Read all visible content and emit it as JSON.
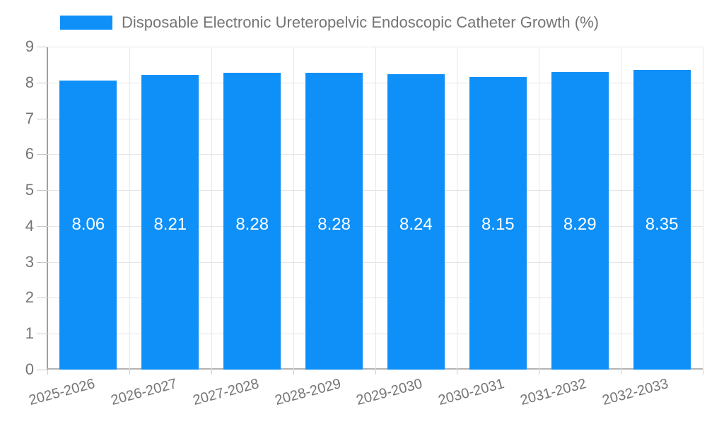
{
  "chart_data": {
    "type": "bar",
    "title": "Disposable Electronic Ureteropelvic Endoscopic Catheter Growth (%)",
    "categories": [
      "2025-2026",
      "2026-2027",
      "2027-2028",
      "2028-2029",
      "2029-2030",
      "2030-2031",
      "2031-2032",
      "2032-2033"
    ],
    "values": [
      8.06,
      8.21,
      8.28,
      8.28,
      8.24,
      8.15,
      8.29,
      8.35
    ],
    "bar_labels": [
      "8.06",
      "8.21",
      "8.28",
      "8.28",
      "8.24",
      "8.15",
      "8.29",
      "8.35"
    ],
    "xlabel": "",
    "ylabel": "",
    "ylim": [
      0,
      9
    ],
    "yticks": [
      0,
      1,
      2,
      3,
      4,
      5,
      6,
      7,
      8,
      9
    ],
    "grid": true,
    "legend_position": "top-left",
    "colors": {
      "bar": "#0e90f8",
      "value_label": "#ffffff",
      "axis_text": "#757575",
      "gridline": "#e6e6e6",
      "axis_line": "#9e9e9e",
      "baseline": "#b3b3b3",
      "tick": "#c9c9c9",
      "background": "#ffffff"
    }
  }
}
